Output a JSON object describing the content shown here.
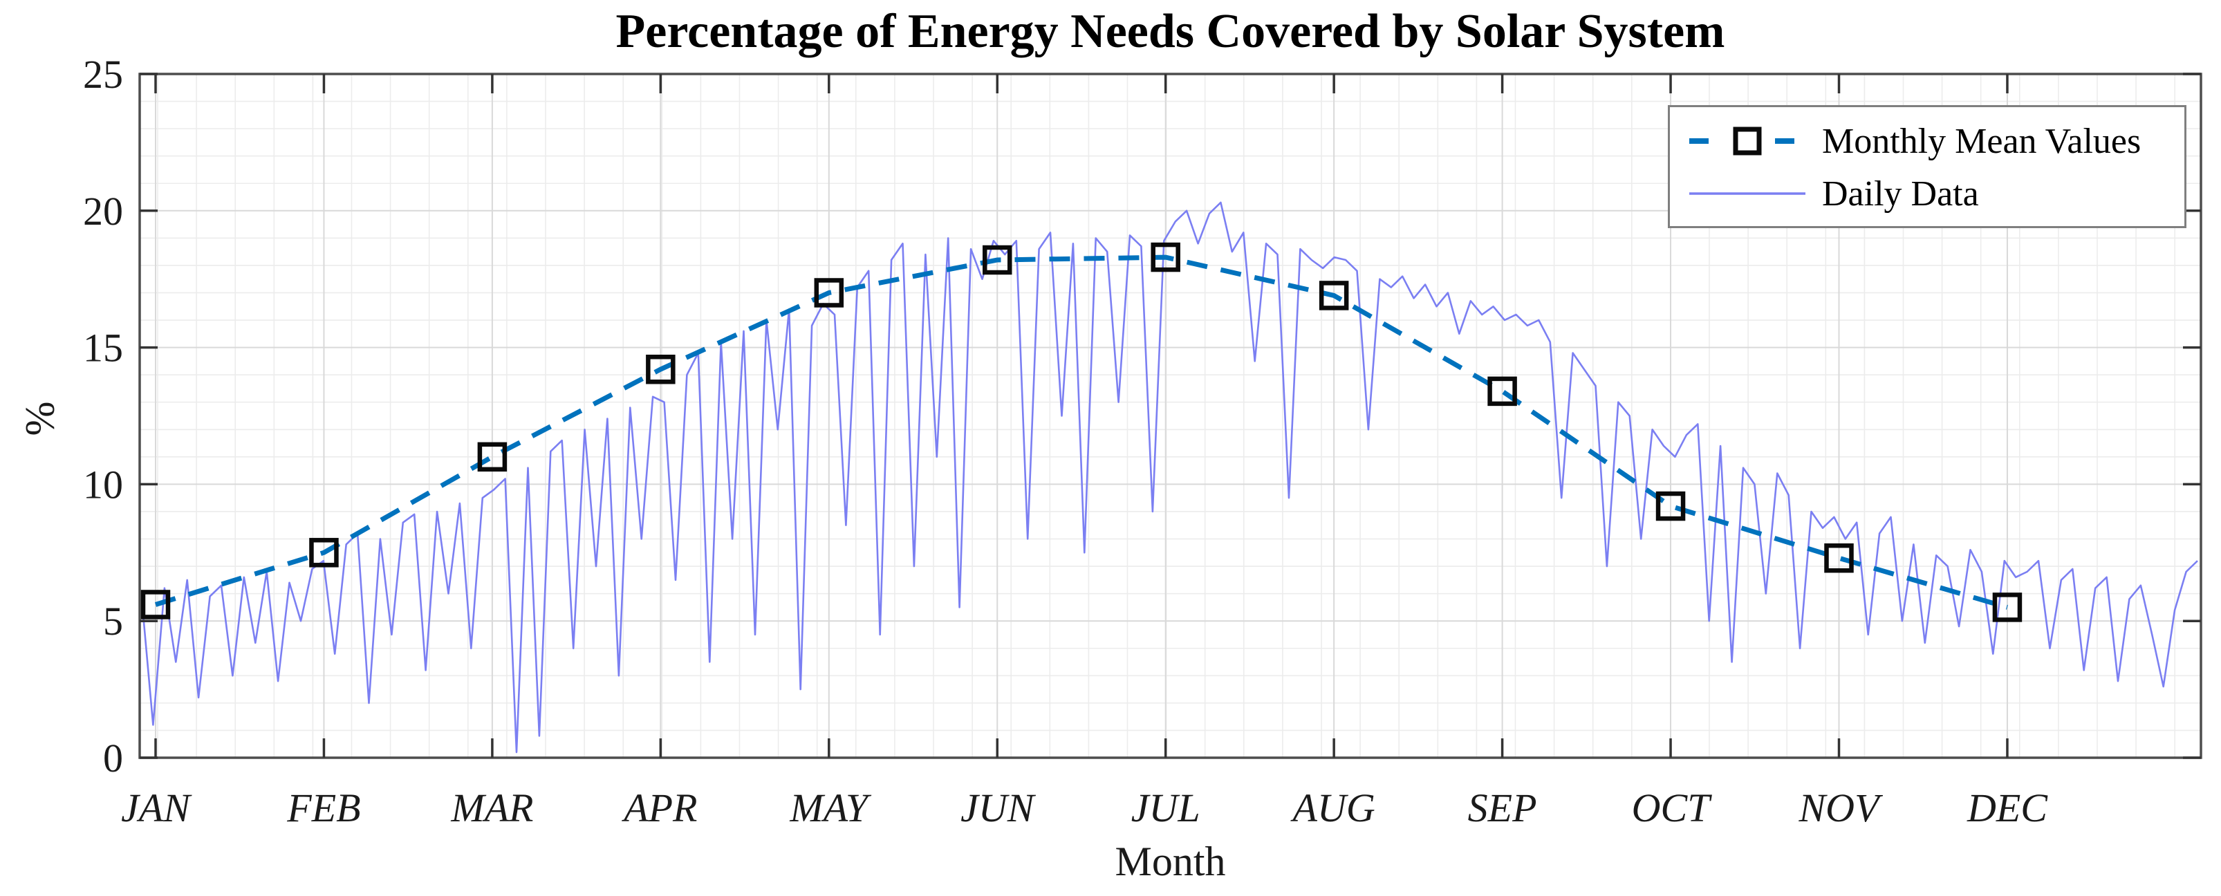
{
  "chart_data": {
    "type": "line",
    "title": "Percentage of Energy Needs Covered by Solar System",
    "xlabel": "Month",
    "ylabel": "%",
    "ylim": [
      0,
      25
    ],
    "y_ticks": [
      0,
      5,
      10,
      15,
      20,
      25
    ],
    "x_tick_labels": [
      "JAN",
      "FEB",
      "MAR",
      "APR",
      "MAY",
      "JUN",
      "JUL",
      "AUG",
      "SEP",
      "OCT",
      "NOV",
      "DEC"
    ],
    "grid": "major and minor gridlines on",
    "legend_position": "northeast",
    "series": [
      {
        "name": "Monthly Mean Values",
        "style": "dashed line with square markers",
        "color": "#0072BD",
        "marker_edge_color": "#000000",
        "categories": [
          "JAN",
          "FEB",
          "MAR",
          "APR",
          "MAY",
          "JUN",
          "JUL",
          "AUG",
          "SEP",
          "OCT",
          "NOV",
          "DEC"
        ],
        "values": [
          5.6,
          7.5,
          11.0,
          14.2,
          17.0,
          18.2,
          18.3,
          16.9,
          13.4,
          9.2,
          7.3,
          5.5
        ]
      },
      {
        "name": "Daily Data",
        "style": "thin solid line, daily resolution over one year",
        "color": "#7B7FF2",
        "x_unit": "day of year (sampled ~every 2 days)",
        "values": [
          5.8,
          1.2,
          6.2,
          3.5,
          6.5,
          2.2,
          5.9,
          6.3,
          3.0,
          6.6,
          4.2,
          6.8,
          2.8,
          6.4,
          5.0,
          6.9,
          7.2,
          3.8,
          7.8,
          8.2,
          2.0,
          8.0,
          4.5,
          8.6,
          8.9,
          3.2,
          9.0,
          6.0,
          9.3,
          4.0,
          9.5,
          9.8,
          10.2,
          0.2,
          10.6,
          0.8,
          11.2,
          11.6,
          4.0,
          12.0,
          7.0,
          12.4,
          3.0,
          12.8,
          8.0,
          13.2,
          13.0,
          6.5,
          14.0,
          14.8,
          3.5,
          15.2,
          8.0,
          15.6,
          4.5,
          16.0,
          12.0,
          16.4,
          2.5,
          15.8,
          16.6,
          16.2,
          8.5,
          17.2,
          17.8,
          4.5,
          18.2,
          18.8,
          7.0,
          18.4,
          11.0,
          19.0,
          5.5,
          18.6,
          17.5,
          18.9,
          18.4,
          18.9,
          8.0,
          18.6,
          19.2,
          12.5,
          18.8,
          7.5,
          19.0,
          18.5,
          13.0,
          19.1,
          18.7,
          9.0,
          18.9,
          19.6,
          20.0,
          18.8,
          19.9,
          20.3,
          18.5,
          19.2,
          14.5,
          18.8,
          18.4,
          9.5,
          18.6,
          18.2,
          17.9,
          18.3,
          18.2,
          17.8,
          12.0,
          17.5,
          17.2,
          17.6,
          16.8,
          17.3,
          16.5,
          17.0,
          15.5,
          16.7,
          16.2,
          16.5,
          16.0,
          16.2,
          15.8,
          16.0,
          15.2,
          9.5,
          14.8,
          14.2,
          13.6,
          7.0,
          13.0,
          12.5,
          8.0,
          12.0,
          11.4,
          11.0,
          11.8,
          12.2,
          5.0,
          11.4,
          3.5,
          10.6,
          10.0,
          6.0,
          10.4,
          9.6,
          4.0,
          9.0,
          8.4,
          8.8,
          8.0,
          8.6,
          4.5,
          8.2,
          8.8,
          5.0,
          7.8,
          4.2,
          7.4,
          7.0,
          4.8,
          7.6,
          6.8,
          3.8,
          7.2,
          6.6,
          6.8,
          7.2,
          4.0,
          6.5,
          6.9,
          3.2,
          6.2,
          6.6,
          2.8,
          5.8,
          6.3,
          4.5,
          2.6,
          5.4,
          6.8,
          7.2
        ]
      }
    ]
  },
  "legend": {
    "items": [
      {
        "label": "Monthly Mean Values"
      },
      {
        "label": "Daily Data"
      }
    ]
  },
  "colors": {
    "mean_line": "#0072BD",
    "daily_line": "#7B7FF2",
    "marker_edge": "#0a0a0a",
    "grid_major": "#d9d9d9",
    "grid_minor": "#ececec",
    "axis": "#4d4d4d",
    "tick": "#333333",
    "legend_border": "#7f7f7f"
  }
}
